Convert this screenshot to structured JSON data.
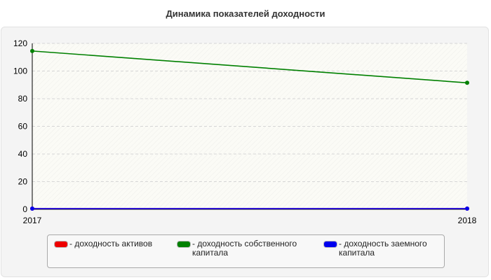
{
  "title": "Динамика показателей доходности",
  "colors": {
    "assets": "#ee0000",
    "equity": "#008000",
    "borrowed": "#0000ee"
  },
  "legend": [
    {
      "label": "- доходность активов",
      "color": "#ee0000"
    },
    {
      "label": "- доходность собственного капитала",
      "color": "#008000"
    },
    {
      "label": "- доходность заемного капитала",
      "color": "#0000ee"
    }
  ],
  "chart_data": {
    "type": "line",
    "title": "Динамика показателей доходности",
    "x": [
      "2017",
      "2018"
    ],
    "ylim": [
      0,
      120
    ],
    "yticks": [
      0,
      20,
      40,
      60,
      80,
      100,
      120
    ],
    "grid": true,
    "legend_position": "bottom",
    "series": [
      {
        "name": "- доходность активов",
        "color": "#ee0000",
        "values": [
          0.5,
          0.5
        ]
      },
      {
        "name": "- доходность собственного капитала",
        "color": "#008000",
        "values": [
          114.5,
          91.5
        ]
      },
      {
        "name": "- доходность заемного капитала",
        "color": "#0000ee",
        "values": [
          0.5,
          0.5
        ]
      }
    ]
  }
}
